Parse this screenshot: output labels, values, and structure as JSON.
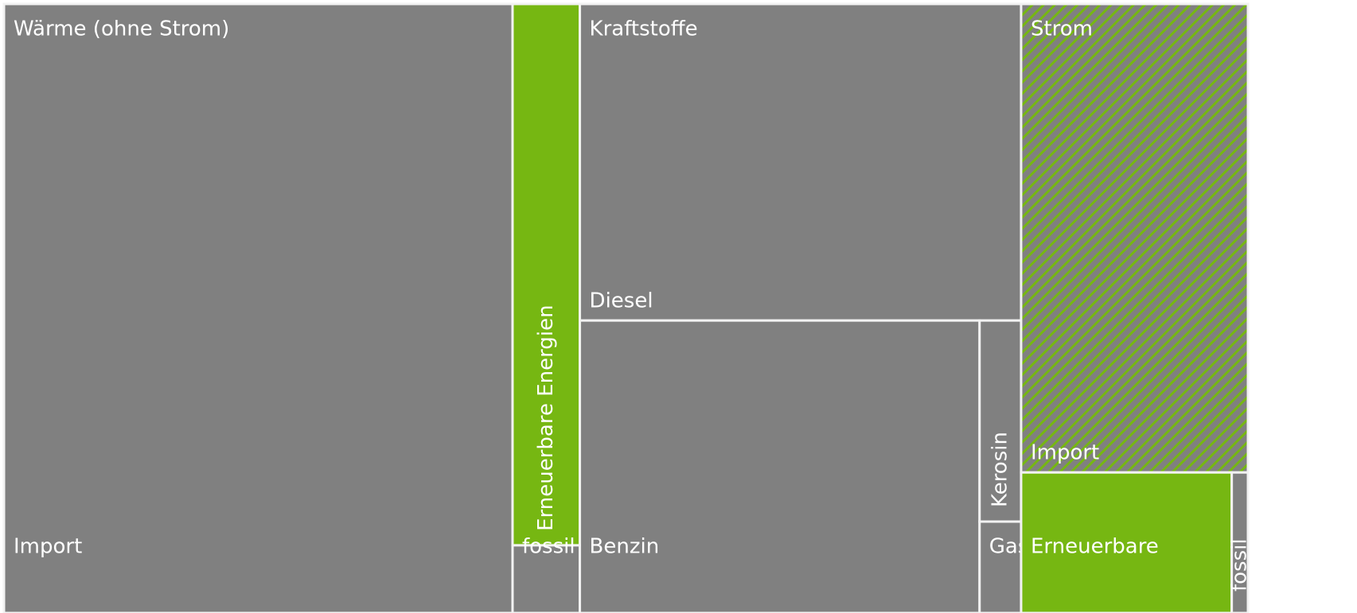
{
  "chart_data": {
    "type": "treemap",
    "groups": [
      {
        "name": "Wärme (ohne Strom)",
        "children": [
          {
            "name": "Import",
            "value": 40.8,
            "color": "#808080"
          },
          {
            "name": "Erneuerbare Energien",
            "value": 4.8,
            "color": "#76b712"
          },
          {
            "name": "fossil",
            "value": 0.6,
            "color": "#808080"
          }
        ]
      },
      {
        "name": "Kraftstoffe",
        "children": [
          {
            "name": "Diesel",
            "value": 18.4,
            "color": "#808080"
          },
          {
            "name": "Benzin",
            "value": 15.4,
            "color": "#808080"
          },
          {
            "name": "Kerosin",
            "value": 1.1,
            "color": "#808080"
          },
          {
            "name": "Gas",
            "value": 0.5,
            "color": "#808080"
          }
        ]
      },
      {
        "name": "Strom",
        "children": [
          {
            "name": "Import",
            "value": 14.0,
            "color": "#808080",
            "hatch": "#76b712"
          },
          {
            "name": "Erneuerbare",
            "value": 3.9,
            "color": "#76b712"
          },
          {
            "name": "fossil",
            "value": 0.3,
            "color": "#808080"
          }
        ]
      }
    ]
  }
}
